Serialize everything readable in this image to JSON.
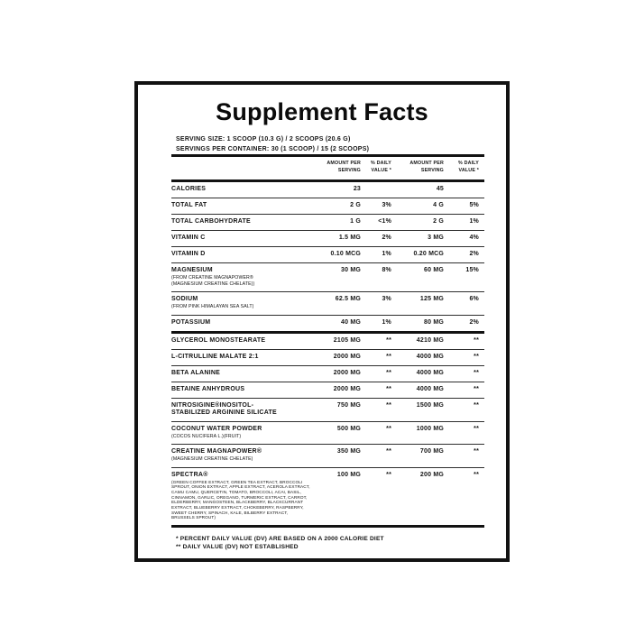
{
  "title": "Supplement Facts",
  "serving": {
    "size": "SERVING SIZE: 1 SCOOP (10.3 G) / 2 SCOOPS (20.6 G)",
    "per_container": "SERVINGS PER CONTAINER: 30 (1 SCOOP) / 15 (2 SCOOPS)"
  },
  "column_headers": [
    "AMOUNT PER\nSERVING",
    "% DAILY\nVALUE *",
    "AMOUNT PER\nSERVING",
    "% DAILY\nVALUE *"
  ],
  "rows": [
    {
      "name": "CALORIES",
      "a1": "23",
      "dv1": "",
      "a2": "45",
      "dv2": ""
    },
    {
      "name": "TOTAL FAT",
      "a1": "2 G",
      "dv1": "3%",
      "a2": "4 G",
      "dv2": "5%"
    },
    {
      "name": "TOTAL CARBOHYDRATE",
      "a1": "1 G",
      "dv1": "<1%",
      "a2": "2 G",
      "dv2": "1%"
    },
    {
      "name": "VITAMIN C",
      "a1": "1.5 MG",
      "dv1": "2%",
      "a2": "3 MG",
      "dv2": "4%"
    },
    {
      "name": "VITAMIN D",
      "a1": "0.10 MCG",
      "dv1": "1%",
      "a2": "0.20 MCG",
      "dv2": "2%"
    },
    {
      "name": "MAGNESIUM",
      "sub": "(FROM CREATINE MAGNAPOWER®\n(MAGNESIUM CREATINE CHELATE))",
      "a1": "30 MG",
      "dv1": "8%",
      "a2": "60 MG",
      "dv2": "15%"
    },
    {
      "name": "SODIUM",
      "sub": "(FROM PINK HIMALAYAN SEA SALT)",
      "a1": "62.5 MG",
      "dv1": "3%",
      "a2": "125 MG",
      "dv2": "6%"
    },
    {
      "name": "POTASSIUM",
      "a1": "40 MG",
      "dv1": "1%",
      "a2": "80 MG",
      "dv2": "2%",
      "thick_after": true
    },
    {
      "name": "GLYCEROL MONOSTEARATE",
      "a1": "2105 MG",
      "dv1": "**",
      "a2": "4210 MG",
      "dv2": "**"
    },
    {
      "name": "L-CITRULLINE MALATE 2:1",
      "a1": "2000 MG",
      "dv1": "**",
      "a2": "4000 MG",
      "dv2": "**"
    },
    {
      "name": "BETA ALANINE",
      "a1": "2000 MG",
      "dv1": "**",
      "a2": "4000 MG",
      "dv2": "**"
    },
    {
      "name": "BETAINE ANHYDROUS",
      "a1": "2000 MG",
      "dv1": "**",
      "a2": "4000 MG",
      "dv2": "**"
    },
    {
      "name": "NITROSIGINE®INOSITOL-\nSTABILIZED ARGININE SILICATE",
      "a1": "750 MG",
      "dv1": "**",
      "a2": "1500 MG",
      "dv2": "**"
    },
    {
      "name": "COCONUT WATER POWDER",
      "sub": "(COCOS NUCIFERA L.)(FRUIT)",
      "a1": "500 MG",
      "dv1": "**",
      "a2": "1000 MG",
      "dv2": "**"
    },
    {
      "name": "CREATINE MAGNAPOWER®",
      "sub": "(MAGNESIUM CREATINE CHELATE)",
      "a1": "350 MG",
      "dv1": "**",
      "a2": "700 MG",
      "dv2": "**"
    },
    {
      "name": "SPECTRA®",
      "sub": "(GREEN COFFEE EXTRACT, GREEN TEA EXTRACT, BROCCOLI SPROUT, ONION EXTRACT, APPLE EXTRACT, ACEROLA EXTRACT, CAMU CAMU, QUERCETIN, TOMATO, BROCCOLI, ACAI, BASIL, CINNAMON, GARLIC, OREGANO, TURMERIC EXTRACT, CARROT, ELDERBERRY, MANGOSTEEN, BLACKBERRY, BLACKCURRANT EXTRACT, BLUEBERRY EXTRACT, CHOKEBERRY, RASPBERRY, SWEET CHERRY, SPINACH, KALE, BILBERRY EXTRACT, BRUSSELS SPROUT)",
      "sub_small": true,
      "a1": "100 MG",
      "dv1": "**",
      "a2": "200 MG",
      "dv2": "**",
      "thick_after": true
    }
  ],
  "footnotes": [
    "* PERCENT DAILY VALUE (DV) ARE BASED ON A 2000 CALORIE DIET",
    "** DAILY VALUE (DV) NOT ESTABLISHED"
  ],
  "colors": {
    "ink": "#121212",
    "background": "#ffffff"
  }
}
